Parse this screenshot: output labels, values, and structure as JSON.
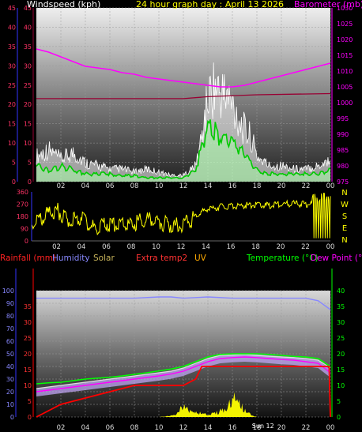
{
  "title": "24 hour graph day : April 13 2026",
  "colors": {
    "bg": "#000000",
    "wind_gust": "#ffffff",
    "wind_avg": "#00cc00",
    "wind_fill": "#aaffaa",
    "barometer": "#ff00ff",
    "dark_red": "#990033",
    "direction": "#ffff00",
    "rain": "#ff0000",
    "humidity": "#8888ff",
    "solar": "#ffff00",
    "extra_temp": "#ff4444",
    "uv": "#ffaa00",
    "temperature": "#00ff00",
    "dewpoint": "#ff00ff",
    "right_axis_green": "#00ff00",
    "axis_blue": "#3333ff"
  },
  "chart_data": [
    {
      "id": "wind",
      "type": "line",
      "labels": {
        "left": "Windspeed (kph)",
        "right": "Barometer (mb)"
      },
      "ylim": [
        0,
        45
      ],
      "y_ticks": [
        0,
        5,
        10,
        15,
        20,
        25,
        30,
        35,
        40,
        45
      ],
      "y2lim": [
        975,
        1030
      ],
      "y2_ticks": [
        975,
        980,
        985,
        990,
        995,
        1000,
        1005,
        1010,
        1015,
        1020,
        1025,
        1030
      ],
      "x_ticks": [
        "02",
        "04",
        "06",
        "08",
        "10",
        "12",
        "14",
        "16",
        "18",
        "20",
        "22",
        "00"
      ],
      "grid": true,
      "series": [
        {
          "key": "barometer",
          "axis": "right",
          "x": [
            0,
            1,
            2,
            3,
            4,
            5,
            6,
            7,
            8,
            9,
            10,
            11,
            12,
            13,
            14,
            15,
            16,
            17,
            18,
            19,
            20,
            21,
            22,
            23,
            24
          ],
          "values": [
            1017,
            1016,
            1014.5,
            1013,
            1011.5,
            1011,
            1010.5,
            1009.5,
            1009,
            1008,
            1007.5,
            1007,
            1006.5,
            1006,
            1005.5,
            1005,
            1005,
            1005.5,
            1006.5,
            1007.5,
            1008.5,
            1009.5,
            1010.5,
            1011.5,
            1012.5
          ]
        },
        {
          "key": "dark_red",
          "axis": "left",
          "x": [
            0,
            6,
            12,
            14,
            18,
            24
          ],
          "values": [
            21.5,
            21.5,
            21.5,
            22,
            22.5,
            22.8
          ]
        },
        {
          "key": "wind_gust",
          "axis": "left",
          "x": [
            0,
            1,
            2,
            3,
            4,
            5,
            6,
            7,
            8,
            9,
            10,
            11,
            12,
            13,
            13.5,
            14,
            14.5,
            15,
            15.5,
            16,
            16.5,
            17,
            17.5,
            18,
            19,
            20,
            21,
            22,
            23,
            24
          ],
          "values": [
            8,
            10,
            7,
            9,
            6,
            5,
            4,
            4,
            3,
            4,
            3,
            2,
            2,
            5,
            14,
            26,
            30,
            28,
            27,
            24,
            20,
            16,
            14,
            8,
            5,
            5,
            4,
            4,
            5,
            7
          ]
        },
        {
          "key": "wind_avg",
          "axis": "left",
          "x": [
            0,
            1,
            2,
            3,
            4,
            5,
            6,
            7,
            8,
            9,
            10,
            11,
            12,
            13,
            13.5,
            14,
            14.5,
            15,
            15.5,
            16,
            16.5,
            17,
            17.5,
            18,
            19,
            20,
            21,
            22,
            23,
            24
          ],
          "values": [
            4,
            3,
            4,
            3,
            2,
            2,
            2,
            1.5,
            1.5,
            1,
            1,
            1,
            1,
            3,
            9,
            14,
            13,
            12,
            12,
            10,
            9,
            7,
            5,
            3,
            2,
            2,
            2,
            2,
            2,
            3
          ]
        }
      ]
    },
    {
      "id": "direction",
      "type": "line",
      "ylim": [
        0,
        360
      ],
      "y_ticks": [
        0,
        90,
        180,
        270,
        360
      ],
      "right_labels": [
        "N",
        "W",
        "S",
        "E",
        "N"
      ],
      "x_ticks": [
        "02",
        "04",
        "06",
        "08",
        "10",
        "12",
        "14",
        "16",
        "18",
        "20",
        "22",
        "00"
      ],
      "series": [
        {
          "key": "direction",
          "x": [
            0,
            1,
            2,
            3,
            4,
            5,
            6,
            7,
            8,
            9,
            10,
            11,
            12,
            13,
            14,
            15,
            16,
            17,
            18,
            19,
            20,
            21,
            22,
            23,
            24
          ],
          "values": [
            120,
            180,
            230,
            140,
            180,
            90,
            130,
            110,
            120,
            160,
            140,
            120,
            110,
            170,
            230,
            250,
            255,
            260,
            265,
            260,
            270,
            275,
            270,
            280,
            290
          ]
        }
      ]
    },
    {
      "id": "temperature",
      "type": "line",
      "labels": {
        "rainfall": "Rainfall (mm)",
        "humidity": "Humidity",
        "solar": "Solar",
        "extra": "Extra temp2",
        "uv": "UV",
        "temperature": "Temperature (°C)",
        "dewpoint": "Dew Point (°C)"
      },
      "ylim": [
        0,
        100
      ],
      "y_ticks": [
        0,
        10,
        20,
        30,
        40,
        50,
        60,
        70,
        80,
        90,
        100
      ],
      "y2_label_ticks": [
        0,
        5,
        10,
        15,
        20,
        25,
        30,
        35,
        40
      ],
      "rain_ticks": [
        0,
        5,
        10,
        15,
        20,
        25,
        30,
        35
      ],
      "x_ticks": [
        "02",
        "04",
        "06",
        "08",
        "10",
        "12",
        "14",
        "16",
        "18",
        "20",
        "22",
        "00"
      ],
      "annotation": "Sun 12",
      "grid": true,
      "series": [
        {
          "key": "humidity",
          "x": [
            0,
            2,
            4,
            6,
            8,
            10,
            11,
            12,
            14,
            16,
            18,
            20,
            22,
            23,
            24
          ],
          "values": [
            94,
            94,
            94,
            94,
            94,
            95,
            95,
            94,
            95,
            94,
            94,
            94,
            94,
            92,
            85
          ]
        },
        {
          "key": "rain",
          "x": [
            0,
            0.5,
            1,
            2,
            3,
            4,
            6,
            8,
            10,
            12,
            13,
            13.5,
            14,
            16,
            18,
            20,
            22,
            23.9,
            24
          ],
          "values": [
            0,
            1,
            2,
            4,
            5,
            6,
            8,
            10,
            10,
            10,
            12,
            16,
            16,
            16,
            16,
            16,
            16,
            16,
            0
          ]
        },
        {
          "key": "temperature",
          "x": [
            0,
            1,
            2,
            3,
            4,
            5,
            6,
            7,
            8,
            9,
            10,
            11,
            12,
            13,
            14,
            15,
            16,
            17,
            18,
            19,
            20,
            21,
            22,
            23,
            24
          ],
          "values": [
            10.5,
            10.8,
            11,
            11.5,
            12,
            12.3,
            12.6,
            13,
            13.5,
            14,
            14.6,
            15.2,
            16,
            17.5,
            19,
            19.8,
            20,
            20,
            20,
            19.8,
            19.5,
            19.2,
            19,
            18.5,
            16
          ]
        },
        {
          "key": "extra_temp",
          "x": [
            0,
            1,
            2,
            3,
            4,
            5,
            6,
            7,
            8,
            9,
            10,
            11,
            12,
            13,
            14,
            15,
            16,
            17,
            18,
            19,
            20,
            21,
            22,
            23,
            24
          ],
          "values": [
            9,
            9.5,
            10,
            10.5,
            11,
            11.5,
            12,
            12.5,
            13,
            13.5,
            14,
            14.5,
            15.5,
            17,
            18.5,
            19.5,
            19.6,
            19.8,
            19.5,
            19.2,
            19,
            18.8,
            18.5,
            18,
            15.5
          ]
        },
        {
          "key": "dewpoint",
          "x": [
            0,
            1,
            2,
            3,
            4,
            5,
            6,
            7,
            8,
            9,
            10,
            11,
            12,
            13,
            14,
            15,
            16,
            17,
            18,
            19,
            20,
            21,
            22,
            23,
            24
          ],
          "values": [
            8,
            8.5,
            9,
            9.5,
            10,
            10.5,
            11,
            11.5,
            12,
            12.5,
            13,
            13.6,
            14.5,
            16,
            17.5,
            18.5,
            18.8,
            19,
            18.8,
            18.5,
            18.2,
            18,
            17.5,
            17,
            14
          ]
        },
        {
          "key": "solar",
          "x": [
            0,
            2,
            4,
            6,
            8,
            10,
            11,
            11.5,
            12,
            12.5,
            13,
            13.5,
            14,
            14.5,
            15,
            15.5,
            16,
            16.3,
            16.6,
            17,
            17.5,
            18,
            20,
            22,
            24
          ],
          "values": [
            0,
            0,
            0,
            0,
            0,
            0,
            1,
            3,
            10,
            6,
            4,
            3,
            2,
            3,
            5,
            7,
            14,
            17,
            12,
            6,
            2,
            0,
            0,
            0,
            0
          ]
        }
      ]
    }
  ]
}
